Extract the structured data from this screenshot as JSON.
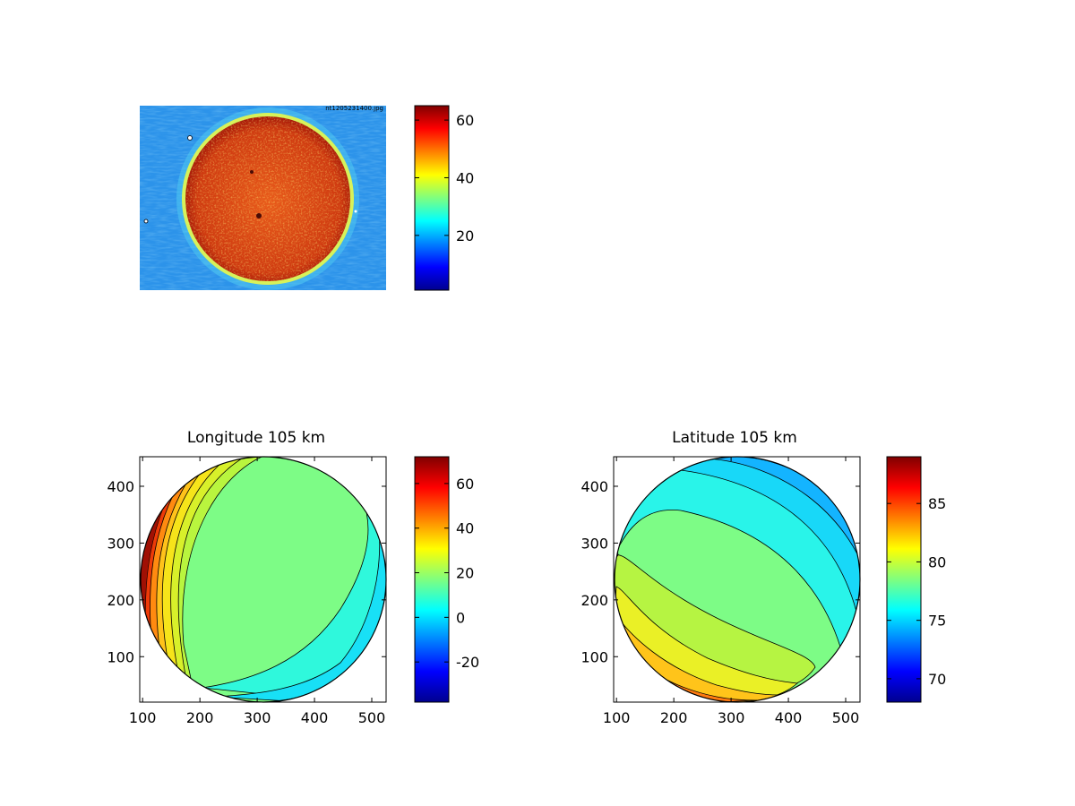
{
  "chart_data": [
    {
      "type": "heatmap",
      "title": "",
      "image_stamp": "nt1205231400.jpg",
      "colorbar": {
        "ticks": [
          20,
          40,
          60
        ],
        "range": [
          1,
          65
        ],
        "colormap": "jet"
      }
    },
    {
      "type": "heatmap",
      "title": "Longitude 105 km",
      "xlim": [
        95,
        525
      ],
      "ylim": [
        20,
        452
      ],
      "xticks": [
        100,
        200,
        300,
        400,
        500
      ],
      "yticks": [
        100,
        200,
        300,
        400
      ],
      "colorbar": {
        "ticks": [
          -20,
          0,
          20,
          40,
          60
        ],
        "range": [
          -38,
          72
        ],
        "colormap": "jet"
      },
      "contour_values": [
        -30,
        -20,
        -10,
        0,
        10,
        20,
        30,
        40,
        50,
        60
      ]
    },
    {
      "type": "heatmap",
      "title": "Latitude 105 km",
      "xlim": [
        95,
        525
      ],
      "ylim": [
        20,
        452
      ],
      "xticks": [
        100,
        200,
        300,
        400,
        500
      ],
      "yticks": [
        100,
        200,
        300,
        400
      ],
      "colorbar": {
        "ticks": [
          70,
          75,
          80,
          85
        ],
        "range": [
          68,
          89
        ],
        "colormap": "jet"
      },
      "contour_values": [
        70,
        72,
        74,
        76,
        78,
        80,
        82,
        84,
        86,
        88
      ]
    }
  ],
  "colors": {
    "jet_stops": [
      "#00008f",
      "#0000ff",
      "#00ffff",
      "#7fff7f",
      "#ffff00",
      "#ff0000",
      "#800000"
    ],
    "photo_background": "#2c93ea",
    "photo_disk": "#d33a10",
    "photo_rim": "#f6e23a",
    "long_left_band": "#b9f53e",
    "long_center": "#7dfc86",
    "long_right_band": "#2ff8dc",
    "lat_top_band": "#29f4e9",
    "lat_center": "#7dfc86",
    "lat_lower_band": "#b6f442"
  }
}
